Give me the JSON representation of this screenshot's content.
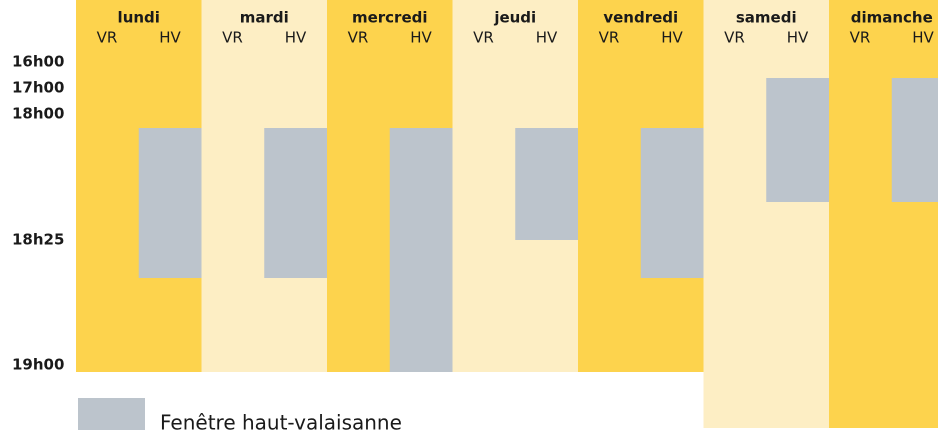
{
  "days": [
    {
      "name": "lundi",
      "columns": [
        "VR",
        "HV"
      ]
    },
    {
      "name": "mardi",
      "columns": [
        "VR",
        "HV"
      ]
    },
    {
      "name": "mercredi",
      "columns": [
        "VR",
        "HV"
      ]
    },
    {
      "name": "jeudi",
      "columns": [
        "VR",
        "HV"
      ]
    },
    {
      "name": "vendredi",
      "columns": [
        "VR",
        "HV"
      ]
    },
    {
      "name": "samedi",
      "columns": [
        "VR",
        "HV"
      ]
    },
    {
      "name": "dimanche",
      "columns": [
        "VR",
        "HV"
      ]
    }
  ],
  "times": [
    "16h00",
    "17h00",
    "18h00",
    "18h25",
    "19h00"
  ],
  "legend": {
    "label": "Fenêtre haut-valaisanne"
  }
}
